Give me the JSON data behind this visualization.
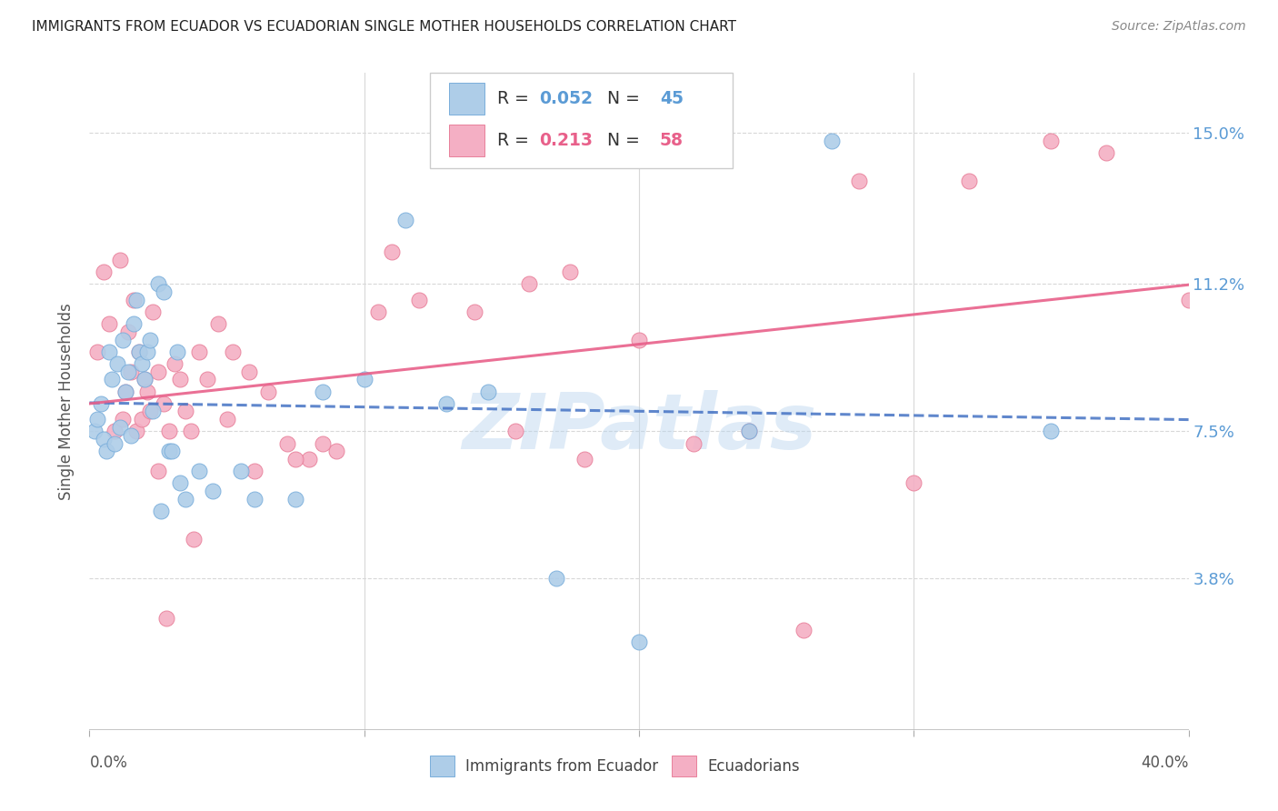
{
  "title": "IMMIGRANTS FROM ECUADOR VS ECUADORIAN SINGLE MOTHER HOUSEHOLDS CORRELATION CHART",
  "source": "Source: ZipAtlas.com",
  "ylabel": "Single Mother Households",
  "yticks": [
    3.8,
    7.5,
    11.2,
    15.0
  ],
  "ytick_labels": [
    "3.8%",
    "7.5%",
    "11.2%",
    "15.0%"
  ],
  "xmin": 0.0,
  "xmax": 40.0,
  "ymin": 0.0,
  "ymax": 16.5,
  "legend_blue_R": "0.052",
  "legend_blue_N": "45",
  "legend_pink_R": "0.213",
  "legend_pink_N": "58",
  "series_blue": {
    "label": "Immigrants from Ecuador",
    "color": "#aecde8",
    "edge_color": "#7aaedb",
    "x": [
      0.2,
      0.3,
      0.4,
      0.5,
      0.6,
      0.7,
      0.8,
      0.9,
      1.0,
      1.1,
      1.2,
      1.3,
      1.4,
      1.5,
      1.6,
      1.7,
      1.8,
      1.9,
      2.0,
      2.1,
      2.2,
      2.3,
      2.5,
      2.7,
      2.9,
      3.2,
      3.5,
      4.0,
      4.5,
      5.5,
      7.5,
      8.5,
      10.0,
      11.5,
      13.0,
      14.5,
      17.0,
      20.0,
      24.0,
      27.0,
      35.0,
      3.0,
      3.3,
      6.0,
      2.6
    ],
    "y": [
      7.5,
      7.8,
      8.2,
      7.3,
      7.0,
      9.5,
      8.8,
      7.2,
      9.2,
      7.6,
      9.8,
      8.5,
      9.0,
      7.4,
      10.2,
      10.8,
      9.5,
      9.2,
      8.8,
      9.5,
      9.8,
      8.0,
      11.2,
      11.0,
      7.0,
      9.5,
      5.8,
      6.5,
      6.0,
      6.5,
      5.8,
      8.5,
      8.8,
      12.8,
      8.2,
      8.5,
      3.8,
      2.2,
      7.5,
      14.8,
      7.5,
      7.0,
      6.2,
      5.8,
      5.5
    ]
  },
  "series_pink": {
    "label": "Ecuadorians",
    "color": "#f4afc4",
    "edge_color": "#e8809a",
    "x": [
      0.3,
      0.5,
      0.7,
      0.9,
      1.1,
      1.2,
      1.3,
      1.4,
      1.5,
      1.6,
      1.7,
      1.8,
      1.9,
      2.0,
      2.1,
      2.2,
      2.3,
      2.5,
      2.7,
      2.9,
      3.1,
      3.3,
      3.5,
      3.7,
      4.0,
      4.3,
      4.7,
      5.2,
      5.8,
      6.5,
      7.2,
      8.0,
      9.0,
      10.5,
      12.0,
      14.0,
      16.0,
      18.0,
      20.0,
      22.0,
      24.0,
      26.0,
      28.0,
      30.0,
      32.0,
      15.5,
      17.5,
      8.5,
      5.0,
      6.0,
      11.0,
      7.5,
      35.0,
      37.0,
      3.8,
      2.5,
      2.8,
      40.0
    ],
    "y": [
      9.5,
      11.5,
      10.2,
      7.5,
      11.8,
      7.8,
      8.5,
      10.0,
      9.0,
      10.8,
      7.5,
      9.5,
      7.8,
      8.8,
      8.5,
      8.0,
      10.5,
      9.0,
      8.2,
      7.5,
      9.2,
      8.8,
      8.0,
      7.5,
      9.5,
      8.8,
      10.2,
      9.5,
      9.0,
      8.5,
      7.2,
      6.8,
      7.0,
      10.5,
      10.8,
      10.5,
      11.2,
      6.8,
      9.8,
      7.2,
      7.5,
      2.5,
      13.8,
      6.2,
      13.8,
      7.5,
      11.5,
      7.2,
      7.8,
      6.5,
      12.0,
      6.8,
      14.8,
      14.5,
      4.8,
      6.5,
      2.8,
      10.8
    ]
  },
  "watermark": "ZIPatlas",
  "background_color": "#ffffff",
  "grid_color": "#d8d8d8",
  "title_color": "#222222",
  "right_axis_color": "#5b9bd5",
  "blue_line_color": "#4472c4",
  "pink_line_color": "#e8608a"
}
